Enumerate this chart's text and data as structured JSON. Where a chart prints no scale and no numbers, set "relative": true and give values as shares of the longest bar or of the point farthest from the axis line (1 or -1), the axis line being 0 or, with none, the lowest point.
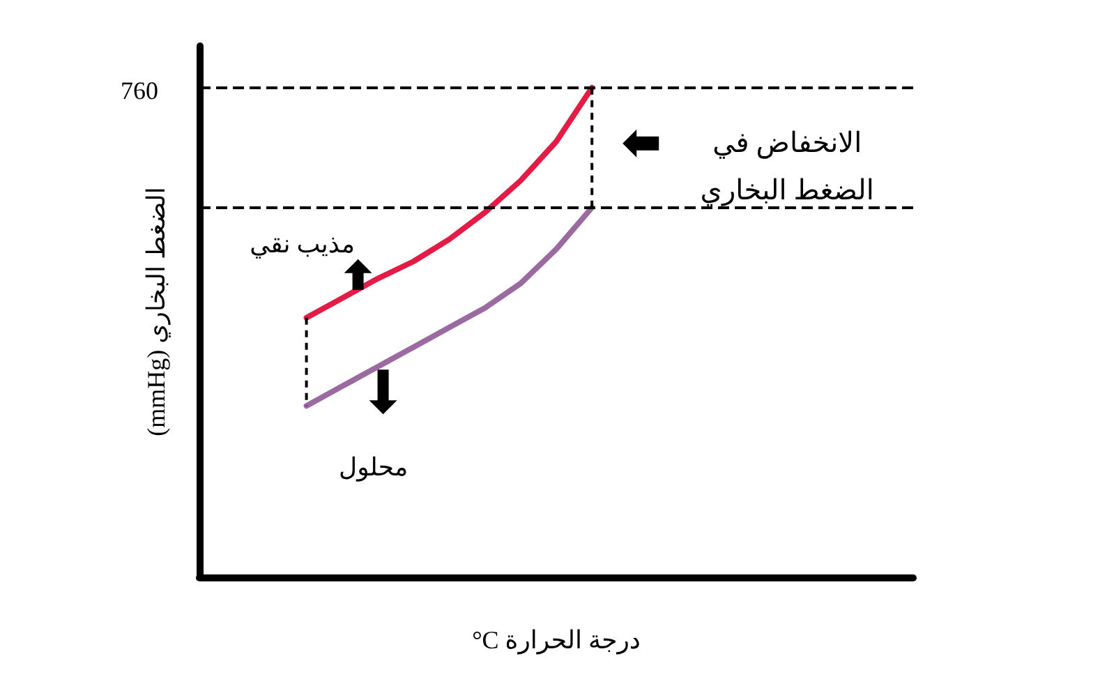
{
  "chart_data": {
    "type": "line",
    "relative": true,
    "xlabel": "درجة الحرارة C°",
    "ylabel": "الضغط البخاري (mmHg)",
    "categories": [
      null,
      null,
      null,
      null,
      null,
      null,
      null,
      null,
      null,
      null,
      null,
      null,
      null,
      null,
      null,
      null,
      null,
      null,
      null,
      null,
      null
    ],
    "series": [
      {
        "name": "مذيب نقي",
        "color": "#e31b45",
        "values": [
          null,
          null,
          null,
          0.53,
          0.57,
          0.61,
          0.645,
          0.69,
          0.745,
          0.81,
          0.89,
          1,
          null,
          null,
          null,
          null,
          null,
          null,
          null,
          null,
          null
        ]
      },
      {
        "name": "محلول",
        "color": "#9a6aa0",
        "values": [
          null,
          null,
          null,
          0.35,
          0.39,
          0.43,
          0.47,
          0.51,
          0.55,
          0.6,
          0.67,
          0.755,
          null,
          null,
          null,
          null,
          null,
          null,
          null,
          null,
          null
        ]
      }
    ],
    "ref_lines": [
      {
        "axis": "y",
        "value": 1,
        "color": "#000000",
        "line_style": "dashed"
      },
      {
        "axis": "y",
        "value": 0.755,
        "color": "#000000",
        "line_style": "dashed"
      }
    ],
    "annotations": [
      "760",
      "الانخفاض في\nالضغط البخاري"
    ],
    "grid": false,
    "legend": false,
    "marker": "none",
    "line_style": "solid"
  }
}
